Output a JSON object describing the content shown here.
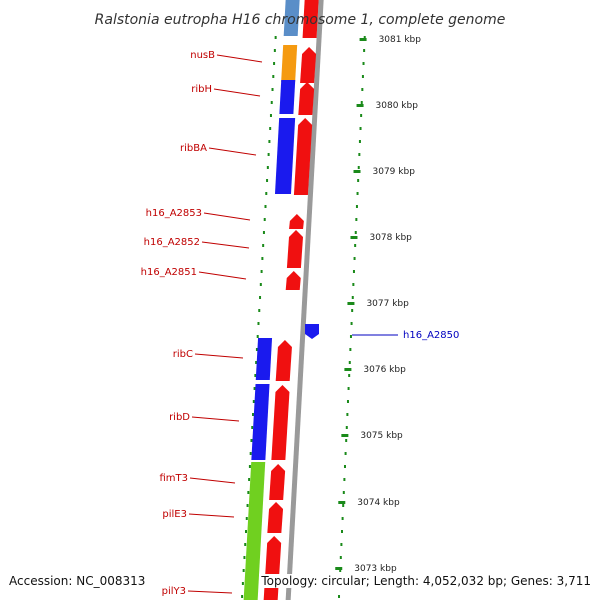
{
  "title": "Ralstonia eutropha H16 chromosome 1, complete genome",
  "accession_text": "Accession: NC_008313",
  "topology_text": "Topology: circular; Length: 4,052,032 bp; Genes: 3,711",
  "colors": {
    "label_red": "#c00000",
    "label_blue": "#0000c0",
    "tick_green": "#1a8a1a",
    "backbone": "#9a9a9a",
    "gene_red": "#f01010",
    "gene_blue": "#1a1aee",
    "gene_orange": "#f59a10",
    "gene_lightblue": "#5a8ec8",
    "gene_green": "#70d020"
  },
  "scale": [
    {
      "label": "3081 kbp"
    },
    {
      "label": "3080 kbp"
    },
    {
      "label": "3079 kbp"
    },
    {
      "label": "3078 kbp"
    },
    {
      "label": "3077 kbp"
    },
    {
      "label": "3076 kbp"
    },
    {
      "label": "3075 kbp"
    },
    {
      "label": "3074 kbp"
    },
    {
      "label": "3073 kbp"
    }
  ],
  "gene_labels": [
    {
      "label": "nusB",
      "color": "red"
    },
    {
      "label": "ribH",
      "color": "red"
    },
    {
      "label": "ribBA",
      "color": "red"
    },
    {
      "label": "h16_A2853",
      "color": "red"
    },
    {
      "label": "h16_A2852",
      "color": "red"
    },
    {
      "label": "h16_A2851",
      "color": "red"
    },
    {
      "label": "h16_A2850",
      "color": "blue"
    },
    {
      "label": "ribC",
      "color": "red"
    },
    {
      "label": "ribD",
      "color": "red"
    },
    {
      "label": "fimT3",
      "color": "red"
    },
    {
      "label": "pilE3",
      "color": "red"
    },
    {
      "label": "pilY3",
      "color": "red"
    }
  ]
}
